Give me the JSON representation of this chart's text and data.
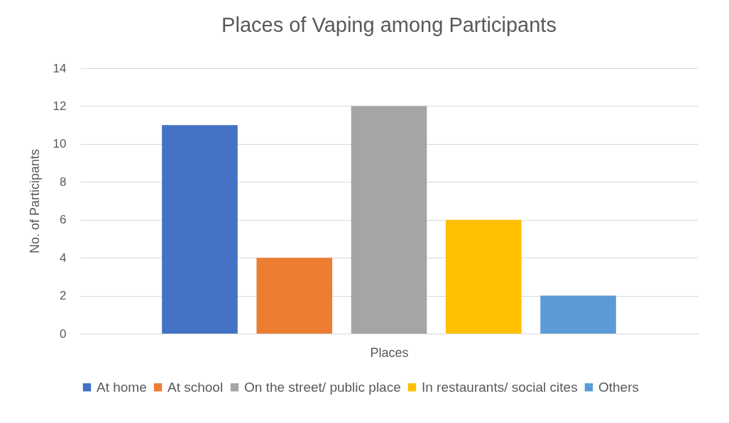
{
  "chart_data": {
    "type": "bar",
    "title": "Places of Vaping among Participants",
    "xlabel": "Places",
    "ylabel": "No. of Participants",
    "categories": [
      null
    ],
    "series": [
      {
        "name": "At home",
        "color": "#4472c4",
        "values": [
          11
        ]
      },
      {
        "name": "At school",
        "color": "#ed7d31",
        "values": [
          4
        ]
      },
      {
        "name": "On the street/ public place",
        "color": "#a5a5a5",
        "values": [
          12
        ]
      },
      {
        "name": "In restaurants/ social cites",
        "color": "#ffc000",
        "values": [
          6
        ]
      },
      {
        "name": "Others",
        "color": "#5b9bd5",
        "values": [
          2
        ]
      }
    ],
    "ylim": [
      0,
      14
    ],
    "yticks": [
      0,
      2,
      4,
      6,
      8,
      10,
      12,
      14
    ],
    "grid": "y",
    "legend": "bottom"
  }
}
